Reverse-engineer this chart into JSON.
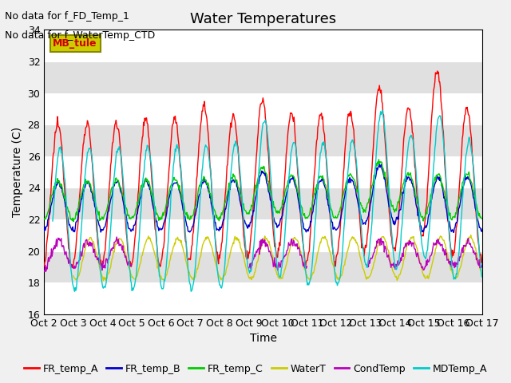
{
  "title": "Water Temperatures",
  "xlabel": "Time",
  "ylabel": "Temperature (C)",
  "ylim": [
    16,
    34
  ],
  "yticks": [
    16,
    18,
    20,
    22,
    24,
    26,
    28,
    30,
    32,
    34
  ],
  "xtick_labels": [
    "Oct 2",
    "Oct 3",
    "Oct 4",
    "Oct 5",
    "Oct 6",
    "Oct 7",
    "Oct 8",
    "Oct 9",
    "Oct 10",
    "Oct 11",
    "Oct 12",
    "Oct 13",
    "Oct 14",
    "Oct 15",
    "Oct 16",
    "Oct 17"
  ],
  "series_colors": {
    "FR_temp_A": "#ff0000",
    "FR_temp_B": "#0000cc",
    "FR_temp_C": "#00cc00",
    "WaterT": "#cccc00",
    "CondTemp": "#bb00bb",
    "MDTemp_A": "#00cccc"
  },
  "annotation_text1": "No data for f_FD_Temp_1",
  "annotation_text2": "No data for f_WaterTemp_CTD",
  "legend_box_text": "MB_tule",
  "legend_box_facecolor": "#cccc00",
  "legend_box_edgecolor": "#888800",
  "legend_box_text_color": "#cc0000",
  "stripe_color": "#e0e0e0",
  "white_color": "#ffffff",
  "title_fontsize": 13,
  "axis_label_fontsize": 10,
  "tick_fontsize": 9,
  "annot_fontsize": 9,
  "legend_fontsize": 9
}
